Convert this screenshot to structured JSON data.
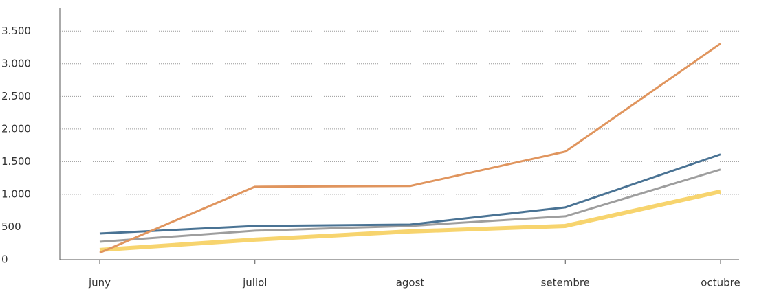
{
  "chart_data": {
    "type": "line",
    "categories": [
      "juny",
      "juliol",
      "agost",
      "setembre",
      "octubre"
    ],
    "series": [
      {
        "color": "#f7d46e",
        "width": 6,
        "values": [
          148,
          306,
          432,
          516,
          1043
        ]
      },
      {
        "color": "#9e9e9e",
        "width": 3,
        "values": [
          274,
          443,
          516,
          664,
          1380
        ]
      },
      {
        "color": "#4a7394",
        "width": 3,
        "values": [
          400,
          516,
          537,
          801,
          1612
        ]
      },
      {
        "color": "#e0955e",
        "width": 3,
        "values": [
          105,
          1117,
          1128,
          1654,
          3309
        ]
      }
    ],
    "ylim": [
      0,
      3850
    ],
    "yticks": [
      0,
      500,
      {
        "value": 1000,
        "label": "1.000"
      },
      {
        "value": 1500,
        "label": "1.500"
      },
      {
        "value": 2000,
        "label": "2.000"
      },
      {
        "value": 2500,
        "label": "2.500"
      },
      {
        "value": 3000,
        "label": "3.000"
      },
      {
        "value": 3500,
        "label": "3.500"
      }
    ],
    "grid": true
  }
}
